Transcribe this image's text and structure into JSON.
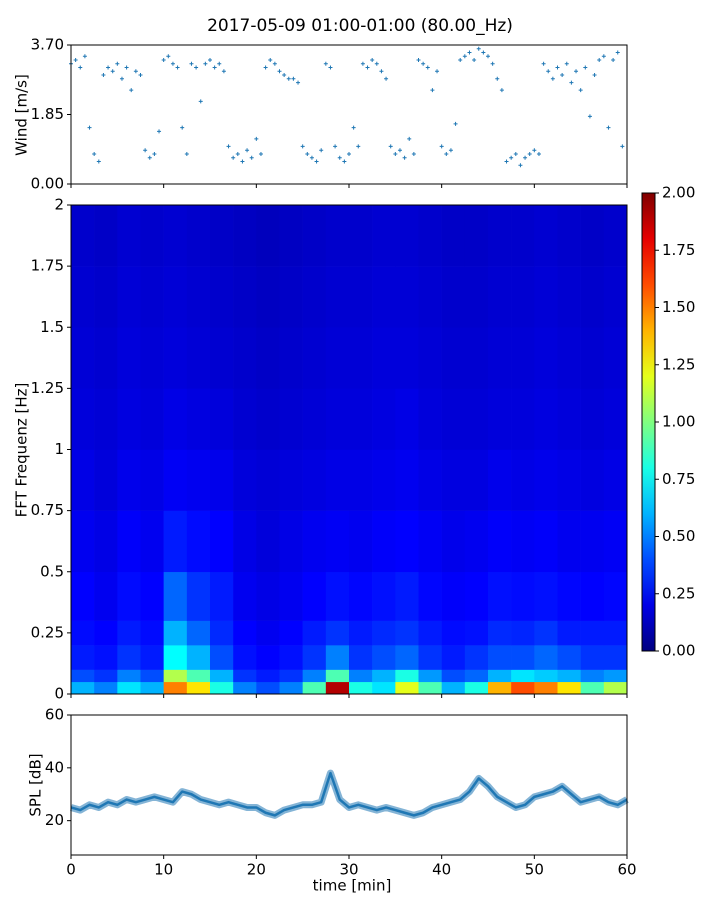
{
  "chart_data": [
    {
      "type": "scatter",
      "title": "2017-05-09 01:00-01:00 (80.00_Hz)",
      "ylabel": "Wind [m/s]",
      "color": "#1f77b4",
      "sharex": true,
      "xlim": [
        0,
        60
      ],
      "xticks": [
        0,
        10,
        20,
        30,
        40,
        50,
        60
      ],
      "ylim": [
        0,
        3.7
      ],
      "yticks": [
        {
          "value": 0,
          "label": "0.00"
        },
        1.85,
        {
          "value": 3.7,
          "label": "3.70"
        }
      ],
      "x": [
        0,
        0.5,
        1,
        1.5,
        2,
        2.5,
        3,
        3.5,
        4,
        4.5,
        5,
        5.5,
        6,
        6.5,
        7,
        7.5,
        8,
        8.5,
        9,
        9.5,
        10,
        10.5,
        11,
        11.5,
        12,
        12.5,
        13,
        13.5,
        14,
        14.5,
        15,
        15.5,
        16,
        16.5,
        17,
        17.5,
        18,
        18.5,
        19,
        19.5,
        20,
        20.5,
        21,
        21.5,
        22,
        22.5,
        23,
        23.5,
        24,
        24.5,
        25,
        25.5,
        26,
        26.5,
        27,
        27.5,
        28,
        28.5,
        29,
        29.5,
        30,
        30.5,
        31,
        31.5,
        32,
        32.5,
        33,
        33.5,
        34,
        34.5,
        35,
        35.5,
        36,
        36.5,
        37,
        37.5,
        38,
        38.5,
        39,
        39.5,
        40,
        40.5,
        41,
        41.5,
        42,
        42.5,
        43,
        43.5,
        44,
        44.5,
        45,
        45.5,
        46,
        46.5,
        47,
        47.5,
        48,
        48.5,
        49,
        49.5,
        50,
        50.5,
        51,
        51.5,
        52,
        52.5,
        53,
        53.5,
        54,
        54.5,
        55,
        55.5,
        56,
        56.5,
        57,
        57.5,
        58,
        58.5,
        59,
        59.5
      ],
      "values": [
        3.2,
        3.3,
        3.1,
        3.4,
        1.5,
        0.8,
        0.6,
        2.9,
        3.1,
        3.0,
        3.2,
        2.8,
        3.1,
        2.5,
        3.0,
        2.9,
        0.9,
        0.7,
        0.8,
        1.4,
        3.3,
        3.4,
        3.2,
        3.1,
        1.5,
        0.8,
        3.2,
        3.1,
        2.2,
        3.2,
        3.3,
        3.1,
        3.2,
        3.0,
        1.0,
        0.7,
        0.8,
        0.6,
        0.9,
        0.7,
        1.2,
        0.8,
        3.1,
        3.3,
        3.2,
        3.0,
        2.9,
        2.8,
        2.8,
        2.7,
        1.0,
        0.8,
        0.7,
        0.6,
        0.9,
        3.2,
        3.1,
        1.0,
        0.7,
        0.6,
        0.8,
        1.5,
        1.0,
        3.2,
        3.1,
        3.3,
        3.2,
        3.0,
        2.8,
        1.0,
        0.8,
        0.9,
        0.7,
        1.2,
        0.8,
        3.3,
        3.2,
        3.1,
        2.5,
        3.0,
        1.0,
        0.8,
        0.9,
        1.6,
        3.3,
        3.4,
        3.5,
        3.3,
        3.6,
        3.5,
        3.4,
        3.2,
        2.8,
        2.5,
        0.6,
        0.7,
        0.8,
        0.5,
        0.7,
        0.8,
        0.9,
        0.8,
        3.2,
        3.0,
        2.8,
        3.1,
        2.9,
        3.2,
        2.7,
        3.0,
        2.5,
        3.1,
        1.8,
        2.9,
        3.3,
        3.4,
        1.5,
        3.3,
        3.5,
        1.0
      ]
    },
    {
      "type": "heatmap",
      "ylabel": "FFT Frequenz [Hz]",
      "colormap": "jet",
      "sharex": true,
      "xlim": [
        0,
        60
      ],
      "xticks": [
        0,
        10,
        20,
        30,
        40,
        50,
        60
      ],
      "ylim": [
        0,
        2
      ],
      "yticks": [
        0,
        0.25,
        0.5,
        0.75,
        1,
        1.25,
        1.5,
        1.75,
        2
      ],
      "xbins": [
        0,
        2.5,
        5,
        7.5,
        10,
        12.5,
        15,
        17.5,
        20,
        22.5,
        25,
        27.5,
        30,
        32.5,
        35,
        37.5,
        40,
        42.5,
        45,
        47.5,
        50,
        52.5,
        55,
        57.5,
        60
      ],
      "ybins": [
        0,
        0.05,
        0.1,
        0.2,
        0.3,
        0.5,
        0.75,
        1,
        1.25,
        1.5,
        1.75,
        2
      ],
      "clim": [
        0,
        2
      ],
      "cticks": [
        {
          "value": 0,
          "label": "0.00"
        },
        {
          "value": 0.25,
          "label": "0.25"
        },
        {
          "value": 0.5,
          "label": "0.50"
        },
        {
          "value": 0.75,
          "label": "0.75"
        },
        {
          "value": 1,
          "label": "1.00"
        },
        {
          "value": 1.25,
          "label": "1.25"
        },
        {
          "value": 1.5,
          "label": "1.50"
        },
        {
          "value": 1.75,
          "label": "1.75"
        },
        {
          "value": 2,
          "label": "2.00"
        }
      ],
      "values": [
        [
          0.6,
          0.5,
          0.7,
          0.6,
          1.5,
          1.3,
          0.8,
          0.5,
          0.4,
          0.5,
          0.9,
          1.9,
          0.8,
          0.7,
          1.2,
          0.9,
          0.6,
          0.8,
          1.4,
          1.6,
          1.5,
          1.3,
          0.9,
          1.1
        ],
        [
          0.4,
          0.35,
          0.5,
          0.4,
          1.1,
          0.9,
          0.6,
          0.35,
          0.3,
          0.35,
          0.5,
          0.9,
          0.5,
          0.6,
          0.8,
          0.55,
          0.4,
          0.45,
          0.6,
          0.7,
          0.65,
          0.6,
          0.5,
          0.55
        ],
        [
          0.3,
          0.28,
          0.35,
          0.3,
          0.75,
          0.6,
          0.4,
          0.28,
          0.25,
          0.28,
          0.35,
          0.5,
          0.35,
          0.4,
          0.45,
          0.35,
          0.3,
          0.35,
          0.4,
          0.4,
          0.45,
          0.4,
          0.35,
          0.35
        ],
        [
          0.27,
          0.25,
          0.3,
          0.27,
          0.6,
          0.45,
          0.33,
          0.25,
          0.22,
          0.25,
          0.3,
          0.35,
          0.3,
          0.33,
          0.35,
          0.3,
          0.27,
          0.28,
          0.33,
          0.32,
          0.35,
          0.3,
          0.3,
          0.3
        ],
        [
          0.25,
          0.22,
          0.27,
          0.25,
          0.45,
          0.35,
          0.3,
          0.22,
          0.2,
          0.22,
          0.25,
          0.28,
          0.26,
          0.28,
          0.3,
          0.26,
          0.24,
          0.25,
          0.28,
          0.27,
          0.28,
          0.26,
          0.25,
          0.26
        ],
        [
          0.22,
          0.2,
          0.24,
          0.22,
          0.3,
          0.27,
          0.25,
          0.2,
          0.18,
          0.2,
          0.22,
          0.23,
          0.22,
          0.24,
          0.25,
          0.23,
          0.21,
          0.22,
          0.24,
          0.23,
          0.24,
          0.22,
          0.22,
          0.23
        ],
        [
          0.2,
          0.18,
          0.21,
          0.2,
          0.23,
          0.22,
          0.21,
          0.18,
          0.17,
          0.18,
          0.19,
          0.2,
          0.2,
          0.21,
          0.22,
          0.2,
          0.19,
          0.19,
          0.21,
          0.2,
          0.21,
          0.2,
          0.19,
          0.2
        ],
        [
          0.18,
          0.17,
          0.19,
          0.18,
          0.2,
          0.19,
          0.18,
          0.16,
          0.15,
          0.16,
          0.17,
          0.18,
          0.18,
          0.19,
          0.2,
          0.18,
          0.17,
          0.17,
          0.18,
          0.18,
          0.19,
          0.18,
          0.17,
          0.18
        ],
        [
          0.17,
          0.16,
          0.18,
          0.17,
          0.18,
          0.17,
          0.16,
          0.15,
          0.14,
          0.15,
          0.16,
          0.17,
          0.17,
          0.18,
          0.18,
          0.17,
          0.16,
          0.16,
          0.17,
          0.17,
          0.18,
          0.17,
          0.16,
          0.17
        ],
        [
          0.16,
          0.15,
          0.17,
          0.16,
          0.17,
          0.16,
          0.15,
          0.14,
          0.13,
          0.14,
          0.15,
          0.16,
          0.16,
          0.17,
          0.17,
          0.16,
          0.15,
          0.15,
          0.16,
          0.16,
          0.17,
          0.16,
          0.15,
          0.16
        ],
        [
          0.15,
          0.14,
          0.16,
          0.15,
          0.16,
          0.15,
          0.14,
          0.13,
          0.12,
          0.13,
          0.14,
          0.15,
          0.15,
          0.16,
          0.16,
          0.15,
          0.14,
          0.14,
          0.15,
          0.15,
          0.16,
          0.15,
          0.14,
          0.15
        ]
      ]
    },
    {
      "type": "line",
      "ylabel": "SPL [dB]",
      "xlabel": "time [min]",
      "color": "#1f77b4",
      "xlim": [
        0,
        60
      ],
      "xticks": [
        0,
        10,
        20,
        30,
        40,
        50,
        60
      ],
      "ylim": [
        7,
        60
      ],
      "yticks": [
        20,
        40,
        60
      ],
      "x": [
        0,
        1,
        2,
        3,
        4,
        5,
        6,
        7,
        8,
        9,
        10,
        11,
        12,
        13,
        14,
        15,
        16,
        17,
        18,
        19,
        20,
        21,
        22,
        23,
        24,
        25,
        26,
        27,
        28,
        29,
        30,
        31,
        32,
        33,
        34,
        35,
        36,
        37,
        38,
        39,
        40,
        41,
        42,
        43,
        44,
        45,
        46,
        47,
        48,
        49,
        50,
        51,
        52,
        53,
        54,
        55,
        56,
        57,
        58,
        59,
        60
      ],
      "values": [
        25,
        24,
        26,
        25,
        27,
        26,
        28,
        27,
        28,
        29,
        28,
        27,
        31,
        30,
        28,
        27,
        26,
        27,
        26,
        25,
        25,
        23,
        22,
        24,
        25,
        26,
        26,
        27,
        38,
        28,
        25,
        26,
        25,
        24,
        25,
        24,
        23,
        22,
        23,
        25,
        26,
        27,
        28,
        31,
        36,
        33,
        29,
        27,
        25,
        26,
        29,
        30,
        31,
        33,
        30,
        27,
        28,
        29,
        27,
        26,
        28
      ]
    }
  ]
}
